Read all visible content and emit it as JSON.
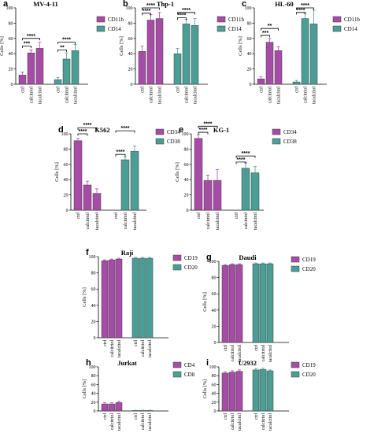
{
  "colors": {
    "purple": "#a64ca6",
    "teal": "#4a9e95",
    "bar_edge": "#3a3a3a"
  },
  "chart_data": [
    {
      "letter": "a",
      "title": "MV-4-11",
      "type": "bar",
      "ylabel": "Cells [%]",
      "ylim": [
        0,
        100
      ],
      "yticks": [
        0,
        20,
        40,
        60,
        80,
        100
      ],
      "categories": [
        "ctrl",
        "calcitriol",
        "tacalcitol"
      ],
      "series": [
        {
          "name": "CD11b",
          "color": "purple",
          "values": [
            12,
            41,
            47
          ],
          "errors": [
            4,
            4,
            8
          ]
        },
        {
          "name": "CD14",
          "color": "teal",
          "values": [
            6,
            33,
            44
          ],
          "errors": [
            3,
            8,
            8
          ]
        }
      ],
      "significance": [
        {
          "series": 0,
          "from": 0,
          "to": 1,
          "y": 50,
          "label": "***"
        },
        {
          "series": 0,
          "from": 0,
          "to": 2,
          "y": 60,
          "label": "****"
        },
        {
          "series": 1,
          "from": 0,
          "to": 1,
          "y": 45,
          "label": "**"
        },
        {
          "series": 1,
          "from": 0,
          "to": 2,
          "y": 55,
          "label": "****"
        }
      ]
    },
    {
      "letter": "b",
      "title": "Thp-1",
      "type": "bar",
      "ylabel": "Cells [%]",
      "ylim": [
        0,
        100
      ],
      "yticks": [
        0,
        20,
        40,
        60,
        80,
        100
      ],
      "categories": [
        "ctrl",
        "calcitriol",
        "tacalcitol"
      ],
      "series": [
        {
          "name": "CD11b",
          "color": "purple",
          "values": [
            43,
            84,
            86
          ],
          "errors": [
            7,
            7,
            8
          ]
        },
        {
          "name": "CD14",
          "color": "teal",
          "values": [
            40,
            79,
            77
          ],
          "errors": [
            7,
            6,
            9
          ]
        }
      ],
      "significance": [
        {
          "series": 0,
          "from": 0,
          "to": 1,
          "y": 93,
          "label": "****"
        },
        {
          "series": 0,
          "from": 0,
          "to": 2,
          "y": 100,
          "label": "****"
        },
        {
          "series": 1,
          "from": 0,
          "to": 1,
          "y": 87,
          "label": "****"
        },
        {
          "series": 1,
          "from": 0,
          "to": 2,
          "y": 94,
          "label": "****"
        }
      ]
    },
    {
      "letter": "c",
      "title": "HL-60",
      "type": "bar",
      "ylabel": "Cells [%]",
      "ylim": [
        0,
        100
      ],
      "yticks": [
        0,
        20,
        40,
        60,
        80,
        100
      ],
      "categories": [
        "ctrl",
        "calcitriol",
        "tacalcitol"
      ],
      "series": [
        {
          "name": "CD11b",
          "color": "purple",
          "values": [
            7,
            55,
            44
          ],
          "errors": [
            3,
            5,
            5
          ]
        },
        {
          "name": "CD14",
          "color": "teal",
          "values": [
            3,
            86,
            79
          ],
          "errors": [
            2,
            7,
            18
          ]
        }
      ],
      "significance": [
        {
          "series": 0,
          "from": 0,
          "to": 1,
          "y": 64,
          "label": "***"
        },
        {
          "series": 0,
          "from": 0,
          "to": 2,
          "y": 73,
          "label": "**"
        },
        {
          "series": 1,
          "from": 0,
          "to": 1,
          "y": 94,
          "label": "****"
        },
        {
          "series": 1,
          "from": 0,
          "to": 2,
          "y": 100,
          "label": "****"
        }
      ]
    },
    {
      "letter": "d",
      "title": "K562",
      "type": "bar",
      "ylabel": "Cells [%]",
      "ylim": [
        0,
        100
      ],
      "yticks": [
        0,
        20,
        40,
        60,
        80,
        100
      ],
      "categories": [
        "ctrl",
        "calcitriol",
        "tacalcitol"
      ],
      "series": [
        {
          "name": "CD34",
          "color": "purple",
          "values": [
            91,
            33,
            22
          ],
          "errors": [
            3,
            5,
            6
          ]
        },
        {
          "name": "CD38",
          "color": "teal",
          "values": [
            0,
            66,
            77
          ],
          "errors": [
            0,
            4,
            7
          ]
        }
      ],
      "significance": [
        {
          "series": 0,
          "from": 0,
          "to": 1,
          "y": 100,
          "label": "****"
        },
        {
          "series": 0,
          "from": 0,
          "to": 2,
          "y": 108,
          "label": "****"
        },
        {
          "series": 1,
          "from": 0,
          "to": 1,
          "y": 73,
          "label": "****"
        },
        {
          "series": 1,
          "from": 0,
          "to": 2,
          "y": 104,
          "label": "****"
        }
      ]
    },
    {
      "letter": "e",
      "title": "KG-1",
      "type": "bar",
      "ylabel": "Cells [%]",
      "ylim": [
        0,
        100
      ],
      "yticks": [
        0,
        20,
        40,
        60,
        80,
        100
      ],
      "categories": [
        "ctrl",
        "calcitriol",
        "tacalcitol"
      ],
      "series": [
        {
          "name": "CD34",
          "color": "purple",
          "values": [
            94,
            39,
            39
          ],
          "errors": [
            5,
            7,
            14
          ]
        },
        {
          "name": "CD38",
          "color": "teal",
          "values": [
            0,
            55,
            49
          ],
          "errors": [
            0,
            7,
            8
          ]
        }
      ],
      "significance": [
        {
          "series": 0,
          "from": 0,
          "to": 1,
          "y": 102,
          "label": "****"
        },
        {
          "series": 0,
          "from": 0,
          "to": 2,
          "y": 110,
          "label": "****"
        },
        {
          "series": 1,
          "from": 0,
          "to": 1,
          "y": 63,
          "label": "****"
        },
        {
          "series": 1,
          "from": 0,
          "to": 2,
          "y": 71,
          "label": "****"
        }
      ]
    },
    {
      "letter": "f",
      "title": "Raji",
      "type": "bar",
      "ylabel": "Cells [%]",
      "ylim": [
        0,
        100
      ],
      "yticks": [
        0,
        20,
        40,
        60,
        80,
        100
      ],
      "categories": [
        "ctrl",
        "calcitriol",
        "tacalcitol"
      ],
      "series": [
        {
          "name": "CD19",
          "color": "purple",
          "values": [
            95,
            96,
            97
          ],
          "errors": [
            1,
            1,
            1
          ]
        },
        {
          "name": "CD20",
          "color": "teal",
          "values": [
            98,
            98,
            98
          ],
          "errors": [
            1,
            1,
            1
          ]
        }
      ],
      "significance": []
    },
    {
      "letter": "g",
      "title": "Daudi",
      "type": "bar",
      "ylabel": "Cells [%]",
      "ylim": [
        0,
        100
      ],
      "yticks": [
        0,
        20,
        40,
        60,
        80,
        100
      ],
      "categories": [
        "ctrl",
        "calcitriol",
        "tacalcitol"
      ],
      "series": [
        {
          "name": "CD19",
          "color": "purple",
          "values": [
            95,
            96,
            96
          ],
          "errors": [
            1,
            1,
            1
          ]
        },
        {
          "name": "CD20",
          "color": "teal",
          "values": [
            97,
            97,
            97
          ],
          "errors": [
            1,
            1,
            1
          ]
        }
      ],
      "significance": []
    },
    {
      "letter": "h",
      "title": "Jurkat",
      "type": "bar",
      "ylabel": "Cells [%]",
      "ylim": [
        0,
        100
      ],
      "yticks": [
        0,
        20,
        40,
        60,
        80,
        100
      ],
      "categories": [
        "ctrl",
        "calcitriol",
        "tacalcitol"
      ],
      "series": [
        {
          "name": "CD4",
          "color": "purple",
          "values": [
            16,
            16,
            19
          ],
          "errors": [
            3,
            3,
            3
          ]
        },
        {
          "name": "CD8",
          "color": "teal",
          "values": [
            1,
            1,
            1
          ],
          "errors": [
            0.5,
            0.5,
            0.5
          ]
        }
      ],
      "significance": []
    },
    {
      "letter": "i",
      "title": "U2932",
      "type": "bar",
      "ylabel": "Cells [%]",
      "ylim": [
        0,
        100
      ],
      "yticks": [
        0,
        20,
        40,
        60,
        80,
        100
      ],
      "categories": [
        "ctrl",
        "calcitriol",
        "tacalcitol"
      ],
      "series": [
        {
          "name": "CD19",
          "color": "purple",
          "values": [
            86,
            88,
            90
          ],
          "errors": [
            3,
            3,
            3
          ]
        },
        {
          "name": "CD20",
          "color": "teal",
          "values": [
            93,
            94,
            91
          ],
          "errors": [
            3,
            3,
            2
          ]
        }
      ],
      "significance": []
    }
  ]
}
